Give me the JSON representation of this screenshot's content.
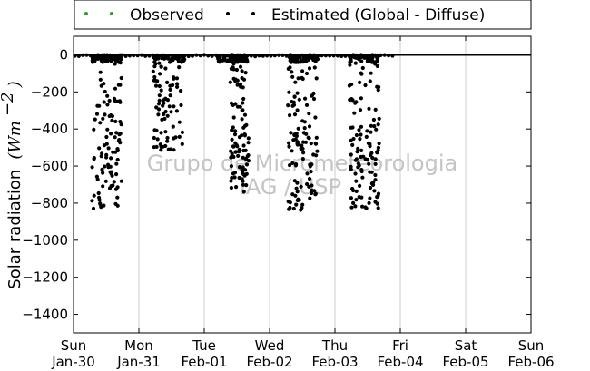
{
  "chart_data": {
    "type": "scatter",
    "ylabel": "Solar radiation",
    "ylabel_unit": "(Wm",
    "ylabel_unit_exp": "−2",
    "ylabel_unit_close": ")",
    "ylim": [
      -1500,
      100
    ],
    "xlim_days": [
      0,
      7
    ],
    "yticks": [
      0,
      -200,
      -400,
      -600,
      -800,
      -1000,
      -1200,
      -1400
    ],
    "xticks": [
      {
        "day": "Sun",
        "date": "Jan-30"
      },
      {
        "day": "Mon",
        "date": "Jan-31"
      },
      {
        "day": "Tue",
        "date": "Feb-01"
      },
      {
        "day": "Wed",
        "date": "Feb-02"
      },
      {
        "day": "Thu",
        "date": "Feb-03"
      },
      {
        "day": "Fri",
        "date": "Feb-04"
      },
      {
        "day": "Sat",
        "date": "Feb-05"
      },
      {
        "day": "Sun",
        "date": "Feb-06"
      }
    ],
    "grid": "vertical",
    "legend": {
      "placement": "top, above plot",
      "entries": [
        {
          "label": "Observed",
          "color": "#2ca02c"
        },
        {
          "label": "Estimated (Global - Diffuse)",
          "color": "#000000"
        }
      ]
    },
    "watermark": [
      "Grupo de Micrometeorologia",
      "IAG / USP"
    ],
    "series": [
      {
        "name": "Observed",
        "color": "#2ca02c",
        "x_start_day": 0,
        "x_end_day": 7,
        "value": 0
      },
      {
        "name": "Estimated (Global - Diffuse)",
        "color": "#000000",
        "days": [
          {
            "start": 0.28,
            "end": 0.74,
            "min": -830
          },
          {
            "start": 1.22,
            "end": 1.7,
            "min": -520
          },
          {
            "start": 2.2,
            "end": 2.66,
            "min": -40
          },
          {
            "start": 2.4,
            "end": 2.68,
            "min": -740
          },
          {
            "start": 3.28,
            "end": 3.74,
            "min": -840
          },
          {
            "start": 4.22,
            "end": 4.68,
            "min": -830
          }
        ]
      }
    ]
  }
}
